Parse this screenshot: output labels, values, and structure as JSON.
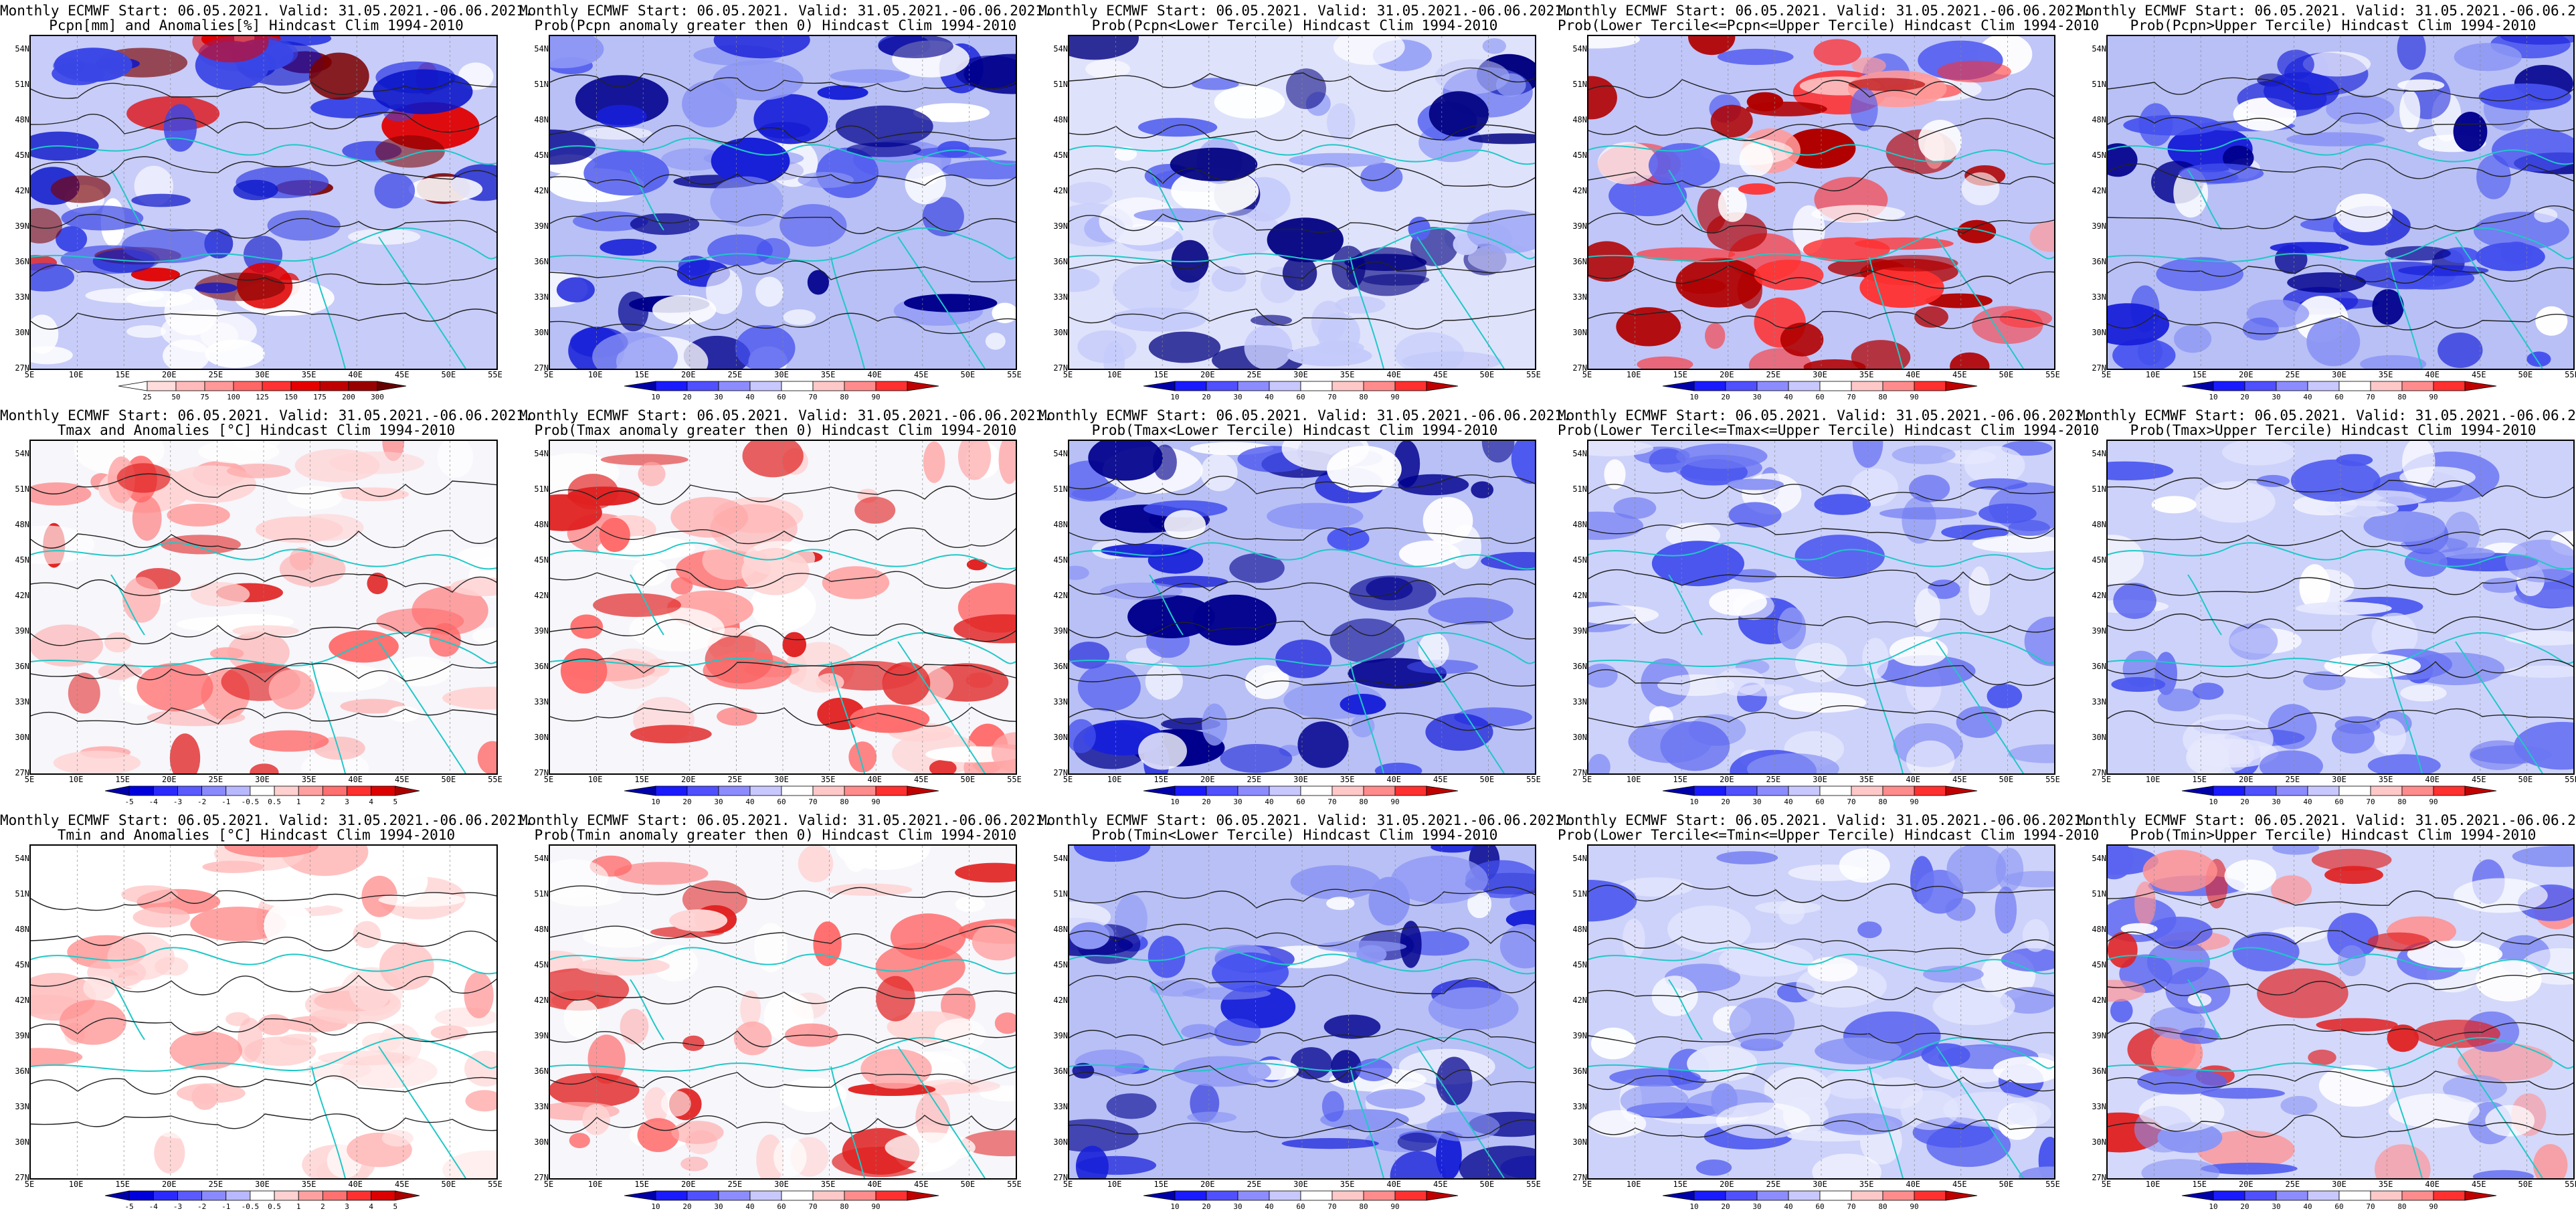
{
  "header_line": "Monthly ECMWF Start: 06.05.2021. Valid: 31.05.2021.-06.06.2021.",
  "lat_labels": [
    "54N",
    "51N",
    "48N",
    "45N",
    "42N",
    "39N",
    "36N",
    "33N",
    "30N",
    "27N"
  ],
  "lon_labels": [
    "5E",
    "10E",
    "15E",
    "20E",
    "25E",
    "30E",
    "35E",
    "40E",
    "45E",
    "50E",
    "55E"
  ],
  "colorbars": {
    "pcpn_anom": {
      "labels": [
        "25",
        "50",
        "75",
        "100",
        "125",
        "150",
        "175",
        "200",
        "300"
      ],
      "colors": [
        "#ffffff",
        "#ffdddd",
        "#ffbbbb",
        "#ff9999",
        "#ff6666",
        "#ff3333",
        "#e60000",
        "#c00000",
        "#990000",
        "#660000"
      ]
    },
    "temp_anom": {
      "labels": [
        "-5",
        "-4",
        "-3",
        "-2",
        "-1",
        "-0.5",
        "0.5",
        "1",
        "2",
        "3",
        "4",
        "5"
      ],
      "colors": [
        "#0000aa",
        "#0000dd",
        "#2a2aff",
        "#5a5aff",
        "#8a8aff",
        "#b8b8ff",
        "#ffffff",
        "#ffd0d0",
        "#ffa0a0",
        "#ff7070",
        "#ff3030",
        "#dd0000",
        "#aa0000"
      ]
    },
    "prob": {
      "labels": [
        "10",
        "20",
        "30",
        "40",
        "60",
        "70",
        "80",
        "90"
      ],
      "colors": [
        "#0000aa",
        "#1a1aff",
        "#5050ff",
        "#8c8cff",
        "#c8c8ff",
        "#ffffff",
        "#ffc8c8",
        "#ff8c8c",
        "#ff3030",
        "#c00000"
      ]
    }
  },
  "panels": [
    {
      "title": "Pcpn[mm] and Anomalies[%] Hindcast Clim 1994-2010",
      "colorbar": "pcpn_anom",
      "tint": "pcpn"
    },
    {
      "title": "Prob(Pcpn anomaly greater then 0) Hindcast Clim 1994-2010",
      "colorbar": "prob",
      "tint": "blue"
    },
    {
      "title": "Prob(Pcpn<Lower Tercile) Hindcast Clim 1994-2010",
      "colorbar": "prob",
      "tint": "lower"
    },
    {
      "title": "Prob(Lower Tercile<=Pcpn<=Upper Tercile) Hindcast Clim 1994-2010",
      "colorbar": "prob",
      "tint": "redsouth"
    },
    {
      "title": "Prob(Pcpn>Upper Tercile) Hindcast Clim 1994-2010",
      "colorbar": "prob",
      "tint": "blue"
    },
    {
      "title": "Tmax and Anomalies [°C] Hindcast Clim 1994-2010",
      "colorbar": "temp_anom",
      "tint": "warm"
    },
    {
      "title": "Prob(Tmax anomaly greater then 0) Hindcast Clim 1994-2010",
      "colorbar": "prob",
      "tint": "warm"
    },
    {
      "title": "Prob(Tmax<Lower Tercile) Hindcast Clim 1994-2010",
      "colorbar": "prob",
      "tint": "blue"
    },
    {
      "title": "Prob(Lower Tercile<=Tmax<=Upper Tercile) Hindcast Clim 1994-2010",
      "colorbar": "prob",
      "tint": "pale"
    },
    {
      "title": "Prob(Tmax>Upper Tercile) Hindcast Clim 1994-2010",
      "colorbar": "prob",
      "tint": "pale"
    },
    {
      "title": "Tmin and Anomalies [°C] Hindcast Clim 1994-2010",
      "colorbar": "temp_anom",
      "tint": "whitewarm"
    },
    {
      "title": "Prob(Tmin anomaly greater then 0) Hindcast Clim 1994-2010",
      "colorbar": "prob",
      "tint": "warm"
    },
    {
      "title": "Prob(Tmin<Lower Tercile) Hindcast Clim 1994-2010",
      "colorbar": "prob",
      "tint": "blue"
    },
    {
      "title": "Prob(Lower Tercile<=Tmin<=Upper Tercile) Hindcast Clim 1994-2010",
      "colorbar": "prob",
      "tint": "pale"
    },
    {
      "title": "Prob(Tmin>Upper Tercile) Hindcast Clim 1994-2010",
      "colorbar": "prob",
      "tint": "paleredse"
    }
  ]
}
